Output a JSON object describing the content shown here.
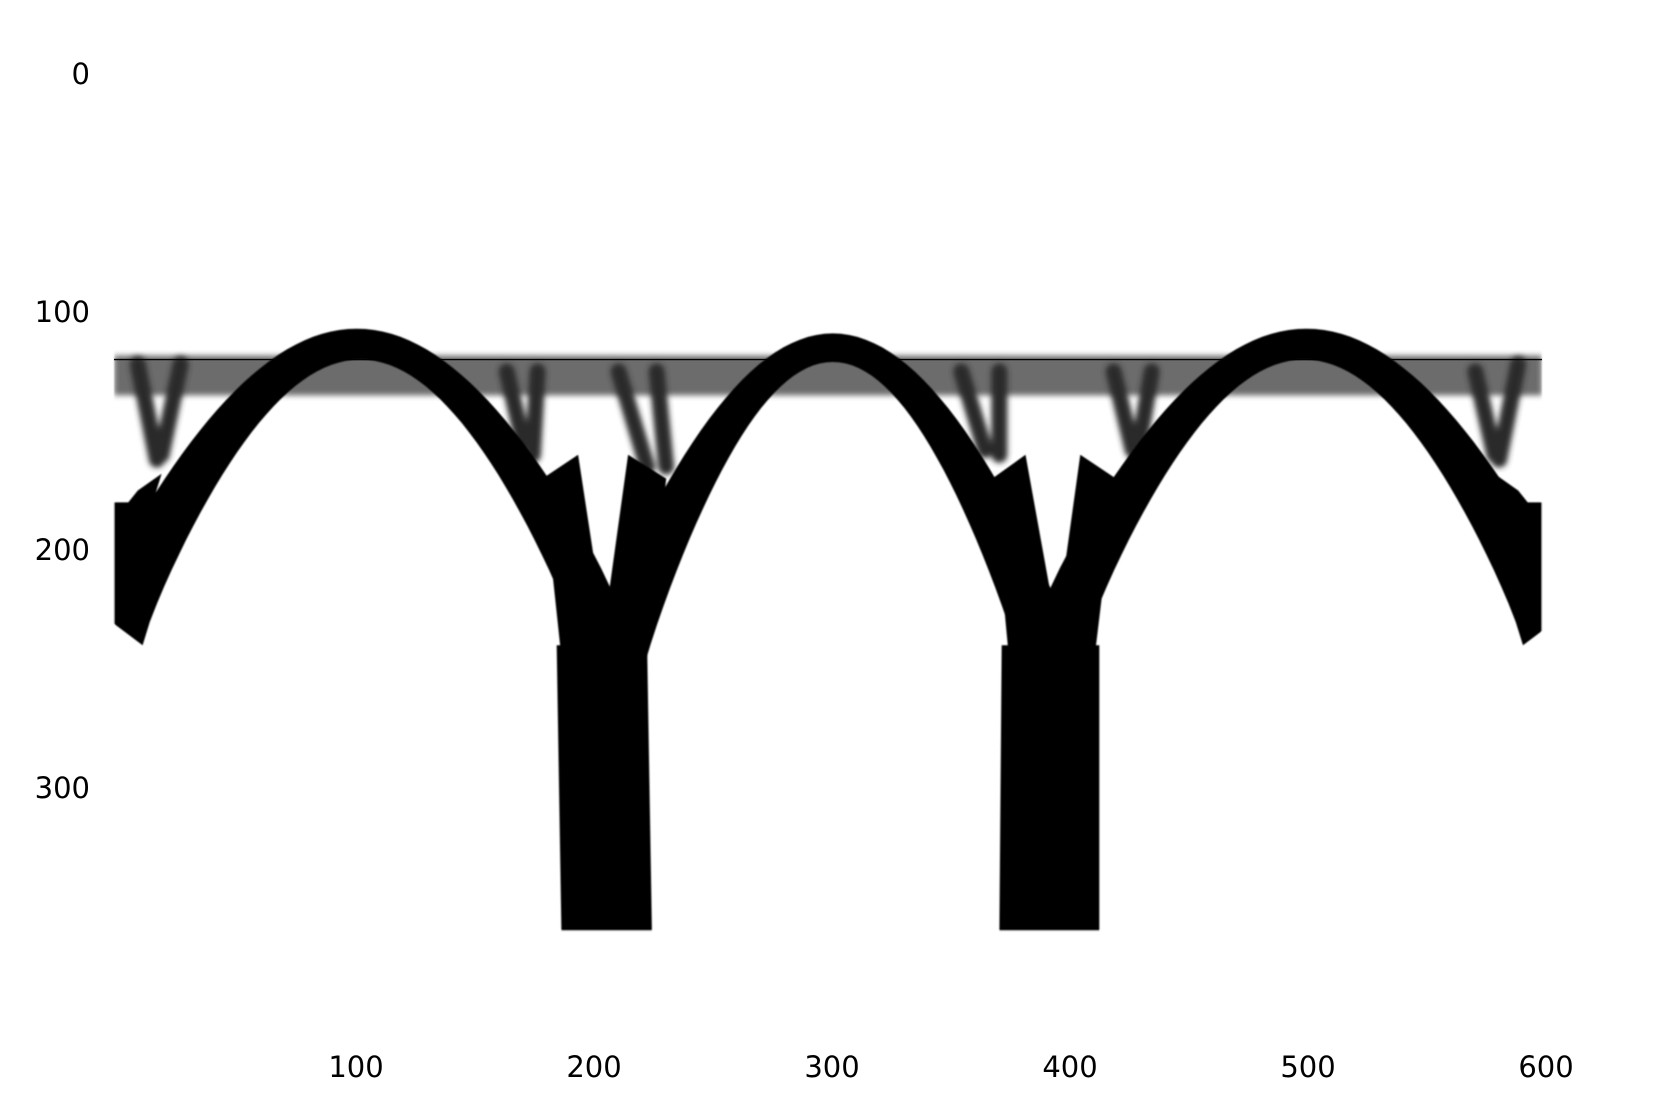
{
  "figure": {
    "title": "",
    "xlabel": "",
    "ylabel": "",
    "colors": {
      "material": "#000000",
      "background": "#ffffff",
      "reference_line": "#000000"
    },
    "x_ticks": [
      {
        "value": 100,
        "label": "100"
      },
      {
        "value": 200,
        "label": "200"
      },
      {
        "value": 300,
        "label": "300"
      },
      {
        "value": 400,
        "label": "400"
      },
      {
        "value": 500,
        "label": "500"
      },
      {
        "value": 600,
        "label": "600"
      }
    ],
    "y_ticks": [
      {
        "value": 0,
        "label": "0"
      },
      {
        "value": 100,
        "label": "100"
      },
      {
        "value": 200,
        "label": "200"
      },
      {
        "value": 300,
        "label": "300"
      }
    ],
    "x_range": [
      0,
      600
    ],
    "y_range": [
      0,
      360
    ],
    "y_inverted": true,
    "reference_line_y": 120,
    "deck_band_y": [
      120,
      135
    ]
  }
}
